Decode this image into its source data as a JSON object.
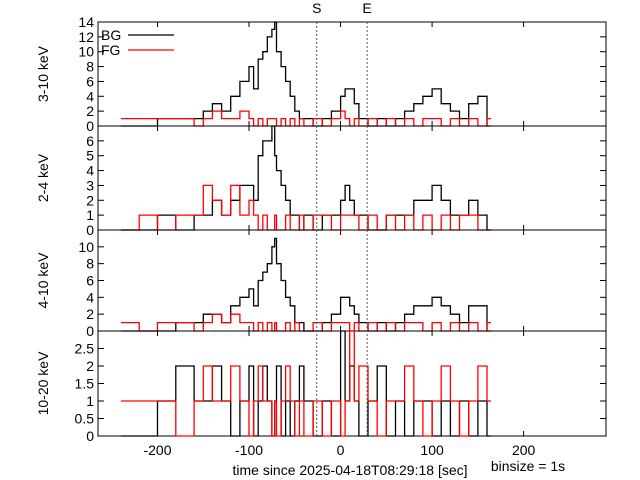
{
  "chart_data": {
    "type": "line",
    "render": "histogram-step",
    "xlabel": "time since 2025-04-18T08:29:18 [sec]",
    "binsize_text": "binsize = 1s",
    "xlim": [
      -265,
      290
    ],
    "x_ticks": [
      -200,
      -100,
      0,
      100,
      200
    ],
    "x_tick_labels": [
      "-200",
      "-100",
      "0",
      "100",
      "200"
    ],
    "markers": [
      {
        "label": "S",
        "x": -26
      },
      {
        "label": "E",
        "x": 29
      }
    ],
    "legend": {
      "placement": "top-left of first panel",
      "entries": [
        {
          "name": "BG",
          "color": "#000000"
        },
        {
          "name": "FG",
          "color": "#ff0000"
        }
      ]
    },
    "panels": [
      {
        "ylabel": "3-10 keV",
        "ylim": [
          0,
          14
        ],
        "y_ticks": [
          0,
          2,
          4,
          6,
          8,
          10,
          12,
          14
        ],
        "series": [
          {
            "name": "BG",
            "color": "#000000",
            "x": [
              -240,
              -220,
              -200,
              -180,
              -160,
              -150,
              -140,
              -130,
              -120,
              -110,
              -100,
              -95,
              -90,
              -85,
              -80,
              -75,
              -72,
              -70,
              -65,
              -60,
              -55,
              -50,
              -45,
              -40,
              -30,
              -20,
              -10,
              0,
              5,
              10,
              15,
              20,
              30,
              40,
              50,
              60,
              70,
              80,
              90,
              100,
              110,
              120,
              130,
              140,
              150,
              160
            ],
            "values": [
              0,
              0,
              1,
              1,
              1,
              2,
              3,
              2,
              4,
              6,
              8,
              5,
              9,
              10,
              12,
              13,
              14,
              10,
              8,
              6,
              4,
              2,
              1,
              1,
              0,
              1,
              2,
              4,
              5,
              5,
              3,
              1,
              0,
              1,
              0,
              1,
              2,
              3,
              4,
              5,
              3,
              2,
              1,
              3,
              4,
              0
            ]
          },
          {
            "name": "FG",
            "color": "#ff0000",
            "x": [
              -240,
              -220,
              -200,
              -180,
              -160,
              -150,
              -140,
              -130,
              -120,
              -110,
              -100,
              -95,
              -90,
              -85,
              -80,
              -75,
              -72,
              -70,
              -65,
              -60,
              -55,
              -50,
              -45,
              -40,
              -30,
              -20,
              -10,
              0,
              5,
              10,
              15,
              20,
              30,
              40,
              50,
              60,
              70,
              80,
              90,
              100,
              110,
              120,
              130,
              140,
              150,
              160
            ],
            "values": [
              1,
              1,
              1,
              1,
              0,
              1,
              2,
              1,
              1,
              2,
              1,
              0,
              1,
              0,
              1,
              1,
              1,
              0,
              1,
              0,
              1,
              0,
              1,
              0,
              1,
              0,
              1,
              2,
              1,
              0,
              1,
              0,
              1,
              0,
              1,
              0,
              1,
              0,
              1,
              1,
              0,
              1,
              0,
              1,
              0,
              1
            ]
          }
        ]
      },
      {
        "ylabel": "2-4 keV",
        "ylim": [
          0,
          7
        ],
        "y_ticks": [
          0,
          1,
          2,
          3,
          4,
          5,
          6
        ],
        "series": [
          {
            "name": "BG",
            "color": "#000000",
            "x": [
              -240,
              -220,
              -200,
              -180,
              -160,
              -150,
              -140,
              -130,
              -120,
              -110,
              -100,
              -95,
              -90,
              -85,
              -80,
              -75,
              -72,
              -70,
              -65,
              -60,
              -55,
              -50,
              -45,
              -40,
              -30,
              -20,
              -10,
              0,
              5,
              10,
              15,
              20,
              30,
              40,
              50,
              60,
              70,
              80,
              90,
              100,
              110,
              120,
              130,
              140,
              150,
              160
            ],
            "values": [
              0,
              0,
              1,
              0,
              1,
              1,
              2,
              1,
              2,
              3,
              3,
              2,
              5,
              6,
              6,
              7,
              5,
              4,
              3,
              2,
              1,
              1,
              0,
              1,
              0,
              1,
              1,
              2,
              3,
              2,
              1,
              1,
              0,
              0,
              1,
              1,
              1,
              2,
              2,
              3,
              2,
              1,
              1,
              2,
              1,
              0
            ]
          },
          {
            "name": "FG",
            "color": "#ff0000",
            "x": [
              -240,
              -220,
              -200,
              -180,
              -160,
              -150,
              -140,
              -130,
              -120,
              -110,
              -100,
              -95,
              -90,
              -85,
              -80,
              -75,
              -72,
              -70,
              -65,
              -60,
              -55,
              -50,
              -45,
              -40,
              -30,
              -20,
              -10,
              0,
              5,
              10,
              15,
              20,
              30,
              40,
              50,
              60,
              70,
              80,
              90,
              100,
              110,
              120,
              130,
              140,
              150,
              160
            ],
            "values": [
              0,
              1,
              0,
              1,
              1,
              3,
              2,
              1,
              3,
              1,
              2,
              1,
              0,
              1,
              0,
              0,
              1,
              0,
              0,
              1,
              0,
              0,
              1,
              0,
              1,
              1,
              0,
              1,
              1,
              1,
              1,
              0,
              1,
              0,
              1,
              0,
              1,
              0,
              1,
              0,
              1,
              0,
              1,
              1,
              0,
              0
            ]
          }
        ]
      },
      {
        "ylabel": "4-10 keV",
        "ylim": [
          0,
          12
        ],
        "y_ticks": [
          0,
          2,
          4,
          6,
          8,
          10
        ],
        "series": [
          {
            "name": "BG",
            "color": "#000000",
            "x": [
              -240,
              -220,
              -200,
              -180,
              -160,
              -150,
              -140,
              -130,
              -120,
              -110,
              -100,
              -95,
              -90,
              -85,
              -80,
              -75,
              -72,
              -70,
              -65,
              -60,
              -55,
              -50,
              -45,
              -40,
              -30,
              -20,
              -10,
              0,
              5,
              10,
              15,
              20,
              30,
              40,
              50,
              60,
              70,
              80,
              90,
              100,
              110,
              120,
              130,
              140,
              150,
              160
            ],
            "values": [
              0,
              0,
              0,
              1,
              1,
              2,
              2,
              1,
              3,
              4,
              5,
              3,
              6,
              7,
              8,
              10,
              11,
              8,
              6,
              4,
              3,
              1,
              1,
              0,
              0,
              1,
              2,
              4,
              4,
              3,
              2,
              1,
              0,
              1,
              0,
              1,
              2,
              3,
              3,
              4,
              3,
              2,
              1,
              3,
              3,
              0
            ]
          },
          {
            "name": "FG",
            "color": "#ff0000",
            "x": [
              -240,
              -220,
              -200,
              -180,
              -160,
              -150,
              -140,
              -130,
              -120,
              -110,
              -100,
              -95,
              -90,
              -85,
              -80,
              -75,
              -72,
              -70,
              -65,
              -60,
              -55,
              -50,
              -45,
              -40,
              -30,
              -20,
              -10,
              0,
              5,
              10,
              15,
              20,
              30,
              40,
              50,
              60,
              70,
              80,
              90,
              100,
              110,
              120,
              130,
              140,
              150,
              160
            ],
            "values": [
              1,
              0,
              1,
              1,
              0,
              1,
              2,
              1,
              2,
              1,
              1,
              0,
              1,
              0,
              1,
              0,
              1,
              0,
              0,
              1,
              0,
              1,
              0,
              0,
              1,
              0,
              1,
              1,
              1,
              0,
              1,
              0,
              1,
              0,
              1,
              0,
              1,
              1,
              0,
              1,
              0,
              1,
              0,
              1,
              0,
              1
            ]
          }
        ]
      },
      {
        "ylabel": "10-20 keV",
        "ylim": [
          0,
          3
        ],
        "y_ticks": [
          0,
          0.5,
          1,
          1.5,
          2,
          2.5
        ],
        "series": [
          {
            "name": "BG",
            "color": "#000000",
            "x": [
              -240,
              -220,
              -200,
              -180,
              -160,
              -150,
              -140,
              -130,
              -120,
              -110,
              -100,
              -95,
              -90,
              -85,
              -80,
              -75,
              -72,
              -70,
              -65,
              -60,
              -55,
              -50,
              -45,
              -40,
              -30,
              -20,
              -10,
              0,
              5,
              10,
              15,
              20,
              30,
              40,
              50,
              60,
              70,
              80,
              90,
              100,
              110,
              120,
              130,
              140,
              150,
              160
            ],
            "values": [
              0,
              0,
              1,
              2,
              1,
              1,
              2,
              1,
              0,
              1,
              2,
              0,
              1,
              2,
              1,
              0,
              1,
              2,
              0,
              1,
              0,
              1,
              2,
              1,
              0,
              1,
              0,
              3,
              1,
              2,
              1,
              0,
              1,
              2,
              0,
              1,
              0,
              1,
              1,
              0,
              1,
              0,
              1,
              0,
              1,
              0
            ]
          },
          {
            "name": "FG",
            "color": "#ff0000",
            "x": [
              -240,
              -220,
              -200,
              -180,
              -160,
              -150,
              -140,
              -130,
              -120,
              -110,
              -100,
              -95,
              -90,
              -85,
              -80,
              -75,
              -72,
              -70,
              -65,
              -60,
              -55,
              -50,
              -45,
              -40,
              -30,
              -20,
              -10,
              0,
              5,
              10,
              15,
              20,
              30,
              40,
              50,
              60,
              70,
              80,
              90,
              100,
              110,
              120,
              130,
              140,
              150,
              160
            ],
            "values": [
              1,
              1,
              1,
              0,
              1,
              2,
              1,
              1,
              2,
              1,
              0,
              1,
              2,
              1,
              1,
              0,
              1,
              0,
              1,
              2,
              1,
              0,
              1,
              0,
              1,
              0,
              1,
              0,
              1,
              3,
              1,
              2,
              1,
              0,
              1,
              1,
              2,
              1,
              0,
              1,
              2,
              1,
              0,
              1,
              2,
              1
            ]
          }
        ]
      }
    ]
  }
}
